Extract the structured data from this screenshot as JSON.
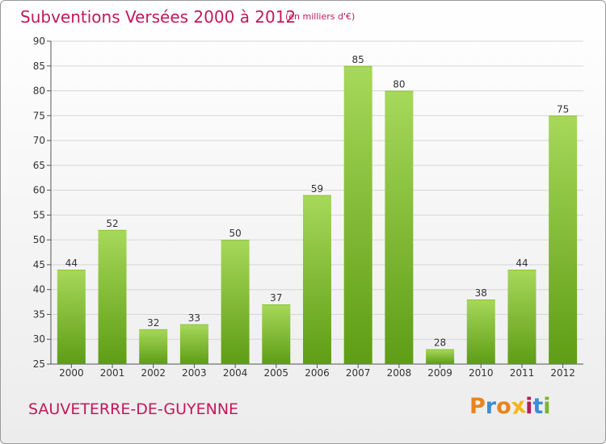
{
  "header": {
    "title": "Subventions Versées 2000 à 2012",
    "unit_note": "(en milliers d'€)"
  },
  "footer": {
    "commune": "SAUVETERRE-DE-GUYENNE",
    "brand_logo": "Proxiti"
  },
  "colors": {
    "title": "#c2185b",
    "bar_light": "#a7d85a",
    "bar_dark": "#5e9d15",
    "logo_letters": [
      "#e8841c",
      "#3a8fd4",
      "#e8841c",
      "#f2b51b",
      "#b31e58",
      "#3a8fd4",
      "#7bb52a"
    ]
  },
  "chart_data": {
    "type": "bar",
    "categories": [
      "2000",
      "2001",
      "2002",
      "2003",
      "2004",
      "2005",
      "2006",
      "2007",
      "2008",
      "2009",
      "2010",
      "2011",
      "2012"
    ],
    "values": [
      44,
      52,
      32,
      33,
      50,
      37,
      59,
      85,
      80,
      28,
      38,
      44,
      75
    ],
    "data_labels": [
      "44",
      "52",
      "32",
      "33",
      "50",
      "37",
      "59",
      "85",
      "80",
      "28",
      "38",
      "44",
      "75"
    ],
    "y_ticks": [
      "25",
      "30",
      "35",
      "40",
      "45",
      "50",
      "55",
      "60",
      "65",
      "70",
      "75",
      "80",
      "85",
      "90"
    ],
    "ylim": [
      25,
      90
    ],
    "grid": true,
    "legend": "none"
  }
}
